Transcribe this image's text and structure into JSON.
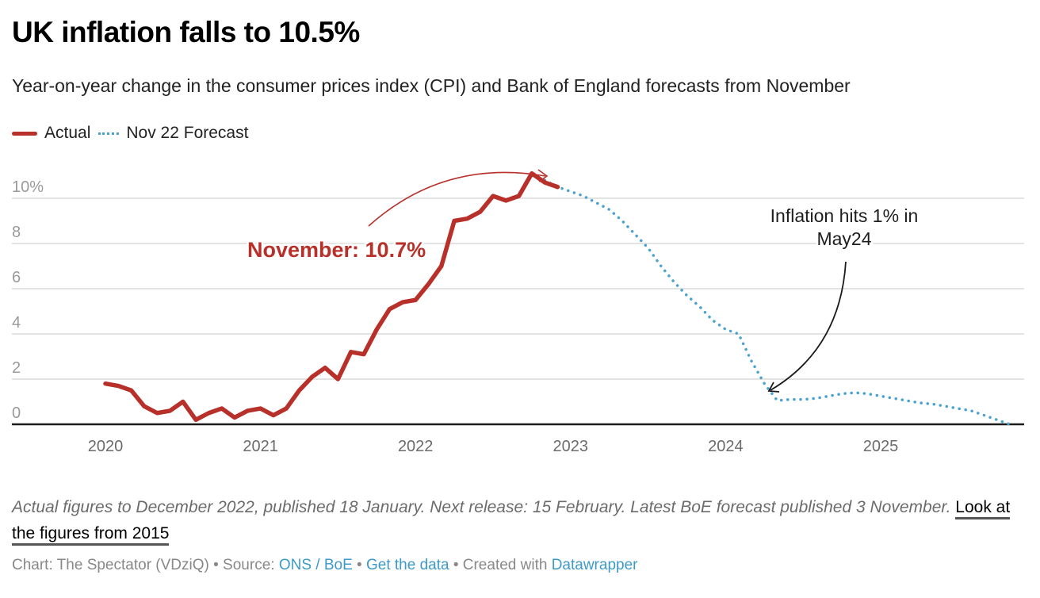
{
  "header": {
    "title": "UK inflation falls to 10.5%",
    "subtitle": "Year-on-year change in the consumer prices index (CPI) and Bank of England forecasts from November"
  },
  "legend": {
    "items": [
      {
        "label": "Actual",
        "color": "#b8302a",
        "style": "solid"
      },
      {
        "label": "Nov 22 Forecast",
        "color": "#4ba2cf",
        "style": "dotted"
      }
    ]
  },
  "chart_data": {
    "type": "line",
    "title": "UK inflation falls to 10.5%",
    "xlabel": "",
    "ylabel": "",
    "x_unit": "month",
    "x_start": "2020-01",
    "x_ticks": [
      {
        "label": "2020",
        "month_index": 0
      },
      {
        "label": "2021",
        "month_index": 12
      },
      {
        "label": "2022",
        "month_index": 24
      },
      {
        "label": "2023",
        "month_index": 36
      },
      {
        "label": "2024",
        "month_index": 48
      },
      {
        "label": "2025",
        "month_index": 60
      }
    ],
    "y_ticks": [
      {
        "label": "0",
        "value": 0
      },
      {
        "label": "2",
        "value": 2
      },
      {
        "label": "4",
        "value": 4
      },
      {
        "label": "6",
        "value": 6
      },
      {
        "label": "8",
        "value": 8
      },
      {
        "label": "10%",
        "value": 10
      }
    ],
    "ylim": [
      0,
      10
    ],
    "xlim_months": [
      -7,
      71
    ],
    "grid": "horizontal",
    "legend_position": "top-left",
    "series": [
      {
        "name": "Actual",
        "color": "#b8302a",
        "start_month_index": 0,
        "values": [
          1.8,
          1.7,
          1.5,
          0.8,
          0.5,
          0.6,
          1.0,
          0.2,
          0.5,
          0.7,
          0.3,
          0.6,
          0.7,
          0.4,
          0.7,
          1.5,
          2.1,
          2.5,
          2.0,
          3.2,
          3.1,
          4.2,
          5.1,
          5.4,
          5.5,
          6.2,
          7.0,
          9.0,
          9.1,
          9.4,
          10.1,
          9.9,
          10.1,
          11.1,
          10.7,
          10.5
        ]
      },
      {
        "name": "Nov 22 Forecast",
        "color": "#4ba2cf",
        "start_month_index": 34,
        "values": [
          10.8,
          10.5,
          10.3,
          10.1,
          9.8,
          9.5,
          9.0,
          8.4,
          7.8,
          7.0,
          6.3,
          5.7,
          5.2,
          4.6,
          4.2,
          4.0,
          2.8,
          1.8,
          1.05,
          1.1,
          1.1,
          1.15,
          1.25,
          1.35,
          1.4,
          1.35,
          1.25,
          1.15,
          1.05,
          0.95,
          0.9,
          0.8,
          0.7,
          0.6,
          0.4,
          0.2,
          0.0
        ]
      }
    ],
    "annotations": [
      {
        "text": "November: 10.7%",
        "color": "#b8302a",
        "bold": true,
        "target_month_index": 34,
        "target_value": 10.7
      },
      {
        "text_lines": [
          "Inflation hits 1% in",
          "May24"
        ],
        "color": "#1d1d1d",
        "bold": false,
        "target_month_index": 52,
        "target_value": 1.05
      }
    ]
  },
  "footer": {
    "notes": "Actual figures to December 2022, published 18 January. Next release: 15 February. Latest BoE forecast published 3 November.",
    "link_label": "Look at the figures from 2015",
    "byline_prefix": "Chart: The Spectator (VDziQ) • Source: ",
    "source_link": "ONS / BoE",
    "sep1": " • ",
    "data_link": "Get the data",
    "sep2": " • Created with ",
    "tool_link": "Datawrapper"
  }
}
